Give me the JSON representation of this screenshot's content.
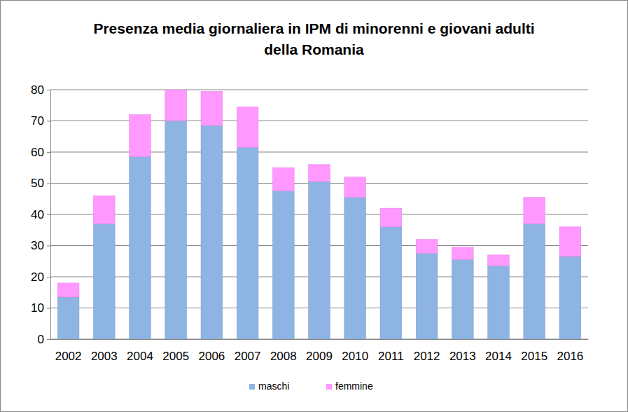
{
  "chart_data": {
    "type": "bar",
    "stacked": true,
    "title": "Presenza media giornaliera in IPM di minorenni e giovani adulti della Romania",
    "categories": [
      "2002",
      "2003",
      "2004",
      "2005",
      "2006",
      "2007",
      "2008",
      "2009",
      "2010",
      "2011",
      "2012",
      "2013",
      "2014",
      "2015",
      "2016"
    ],
    "series": [
      {
        "name": "maschi",
        "color": "#8eb4e3",
        "values": [
          13.5,
          37,
          58.5,
          70,
          68.5,
          61.5,
          47.5,
          50.5,
          45.5,
          36,
          27.5,
          25.5,
          23.5,
          37,
          26.5
        ]
      },
      {
        "name": "femmine",
        "color": "#ff99ff",
        "values": [
          4.5,
          9,
          13.5,
          10,
          11,
          13,
          7.5,
          5.5,
          6.5,
          6,
          4.5,
          4,
          3.5,
          8.5,
          9.5
        ]
      }
    ],
    "ylim": [
      0,
      80
    ],
    "yticks": [
      0,
      10,
      20,
      30,
      40,
      50,
      60,
      70,
      80
    ],
    "grid": true,
    "legend": "bottom"
  }
}
